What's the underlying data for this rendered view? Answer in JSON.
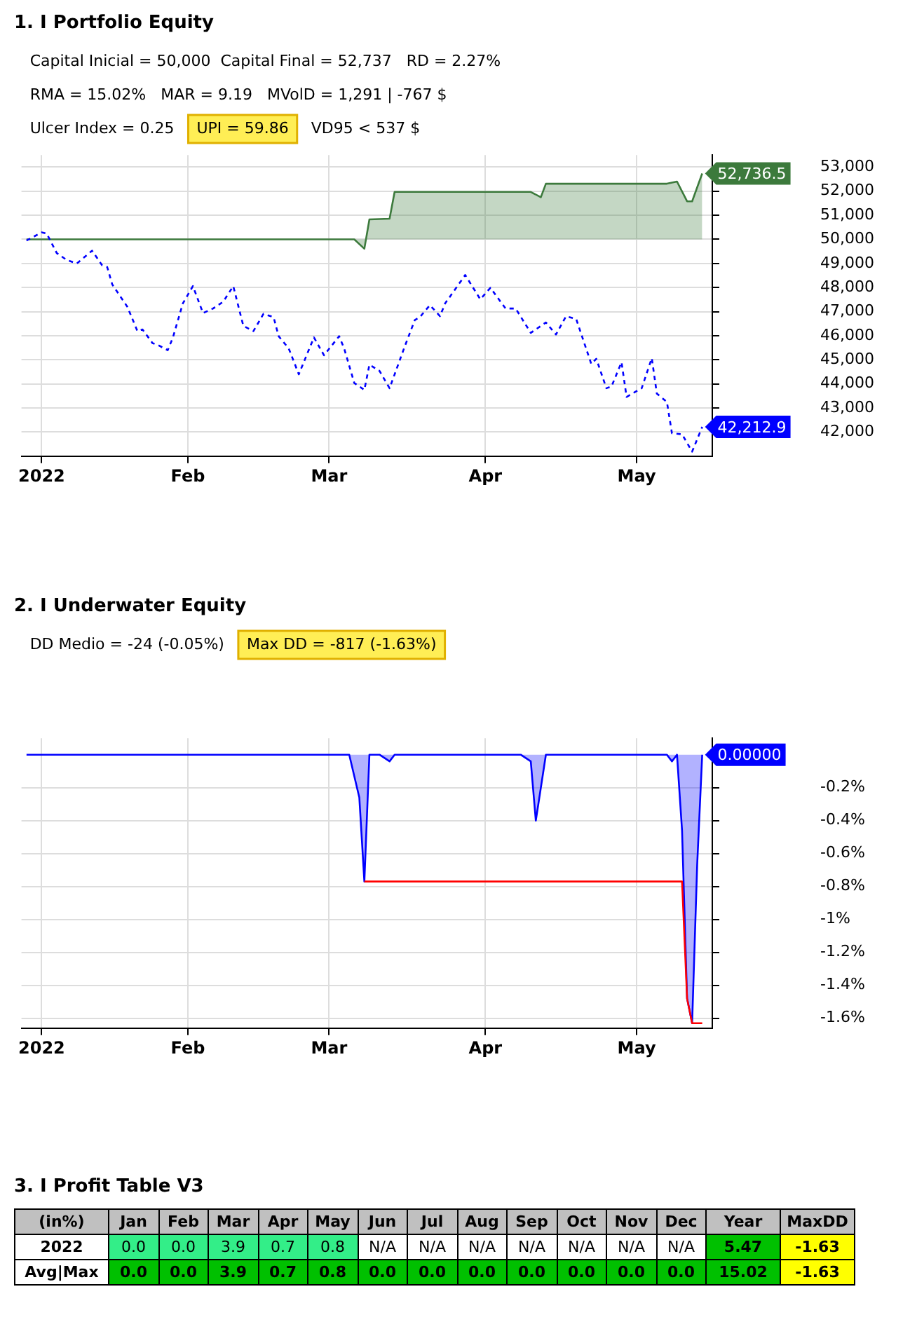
{
  "chart_data": [
    {
      "type": "line",
      "title": "1. I Portfolio Equity",
      "annotations": [
        "Capital Inicial = 50,000  Capital Final = 52,737   RD = 2.27%",
        "RMA = 15.02%   MAR = 9.19   MVolD = 1,291 | -767 $",
        "Ulcer Index = 0.25",
        "UPI = 59.86",
        "VD95 < 537 $"
      ],
      "series": [
        {
          "type": "area",
          "color": "#3c7a3c",
          "line_style": "solid",
          "x": [
            "2021-12-31",
            "2022-03-06",
            "2022-03-08",
            "2022-03-09",
            "2022-03-13",
            "2022-03-14",
            "2022-04-10",
            "2022-04-12",
            "2022-04-13",
            "2022-05-07",
            "2022-05-09",
            "2022-05-11",
            "2022-05-12",
            "2022-05-14"
          ],
          "values": [
            50000,
            50000,
            49610,
            50830,
            50860,
            51970,
            51970,
            51750,
            52310,
            52310,
            52400,
            51580,
            51580,
            52736.5
          ],
          "value_labels": [
            null,
            null,
            null,
            null,
            null,
            null,
            null,
            null,
            null,
            null,
            null,
            null,
            null,
            "52,736.5"
          ]
        },
        {
          "type": "line",
          "color": "#0000ff",
          "line_style": "dashed",
          "x": [
            "2021-12-31",
            "2022-01-03",
            "2022-01-04",
            "2022-01-06",
            "2022-01-08",
            "2022-01-10",
            "2022-01-13",
            "2022-01-15",
            "2022-01-16",
            "2022-01-17",
            "2022-01-20",
            "2022-01-22",
            "2022-01-23",
            "2022-01-25",
            "2022-01-26",
            "2022-01-28",
            "2022-01-29",
            "2022-01-31",
            "2022-02-02",
            "2022-02-04",
            "2022-02-06",
            "2022-02-08",
            "2022-02-10",
            "2022-02-12",
            "2022-02-14",
            "2022-02-16",
            "2022-02-18",
            "2022-02-19",
            "2022-02-21",
            "2022-02-23",
            "2022-02-26",
            "2022-02-28",
            "2022-03-03",
            "2022-03-04",
            "2022-03-06",
            "2022-03-08",
            "2022-03-09",
            "2022-03-11",
            "2022-03-13",
            "2022-03-16",
            "2022-03-18",
            "2022-03-19",
            "2022-03-21",
            "2022-03-23",
            "2022-03-24",
            "2022-03-25",
            "2022-03-28",
            "2022-03-31",
            "2022-04-02",
            "2022-04-05",
            "2022-04-07",
            "2022-04-10",
            "2022-04-13",
            "2022-04-15",
            "2022-04-17",
            "2022-04-19",
            "2022-04-22",
            "2022-04-23",
            "2022-04-25",
            "2022-04-26",
            "2022-04-28",
            "2022-04-29",
            "2022-05-02",
            "2022-05-04",
            "2022-05-05",
            "2022-05-07",
            "2022-05-08",
            "2022-05-10",
            "2022-05-12",
            "2022-05-14"
          ],
          "values": [
            49950,
            50290,
            50240,
            49430,
            49140,
            49000,
            49530,
            48920,
            48850,
            48130,
            47200,
            46190,
            46260,
            45690,
            45620,
            45400,
            45900,
            47340,
            48060,
            46940,
            47130,
            47410,
            48060,
            46410,
            46190,
            46910,
            46770,
            45980,
            45470,
            44400,
            45930,
            45190,
            45980,
            45470,
            44040,
            43750,
            44800,
            44540,
            43820,
            45550,
            46650,
            46770,
            47270,
            46810,
            47340,
            47630,
            48520,
            47510,
            47990,
            47130,
            47130,
            46120,
            46550,
            46050,
            46810,
            46700,
            44830,
            45040,
            43820,
            43890,
            44900,
            43460,
            43820,
            45070,
            43600,
            43250,
            41950,
            41910,
            41190,
            42212.9
          ],
          "value_labels": [
            null,
            null,
            null,
            null,
            null,
            null,
            null,
            null,
            null,
            null,
            null,
            null,
            null,
            null,
            null,
            null,
            null,
            null,
            null,
            null,
            null,
            null,
            null,
            null,
            null,
            null,
            null,
            null,
            null,
            null,
            null,
            null,
            null,
            null,
            null,
            null,
            null,
            null,
            null,
            null,
            null,
            null,
            null,
            null,
            null,
            null,
            null,
            null,
            null,
            null,
            null,
            null,
            null,
            null,
            null,
            null,
            null,
            null,
            null,
            null,
            null,
            null,
            null,
            null,
            null,
            null,
            null,
            null,
            null,
            "42,212.9"
          ]
        }
      ],
      "xlim": [
        "2021-12-30",
        "2022-05-16"
      ],
      "xticks": [
        {
          "value": "2022-01-03",
          "label": "2022"
        },
        {
          "value": "2022-02-01",
          "label": "Feb"
        },
        {
          "value": "2022-03-01",
          "label": "Mar"
        },
        {
          "value": "2022-04-01",
          "label": "Apr"
        },
        {
          "value": "2022-05-01",
          "label": "May"
        }
      ],
      "ylim": [
        41000,
        53500
      ],
      "yticks": [
        {
          "value": 42000,
          "label": "42,000"
        },
        {
          "value": 43000,
          "label": "43,000"
        },
        {
          "value": 44000,
          "label": "44,000"
        },
        {
          "value": 45000,
          "label": "45,000"
        },
        {
          "value": 46000,
          "label": "46,000"
        },
        {
          "value": 47000,
          "label": "47,000"
        },
        {
          "value": 48000,
          "label": "48,000"
        },
        {
          "value": 49000,
          "label": "49,000"
        },
        {
          "value": 50000,
          "label": "50,000"
        },
        {
          "value": 51000,
          "label": "51,000"
        },
        {
          "value": 52000,
          "label": "52,000"
        },
        {
          "value": 53000,
          "label": "53,000"
        }
      ],
      "grid": true,
      "legend": false,
      "marker": "none"
    },
    {
      "type": "line",
      "title": "2. I Underwater Equity",
      "annotations": [
        "DD Medio = -24 (-0.05%)",
        "Max DD = -817 (-1.63%)"
      ],
      "series": [
        {
          "type": "area",
          "color": "#0000ff",
          "line_style": "solid",
          "x": [
            "2021-12-31",
            "2022-03-05",
            "2022-03-07",
            "2022-03-08",
            "2022-03-09",
            "2022-03-11",
            "2022-03-13",
            "2022-03-14",
            "2022-04-08",
            "2022-04-10",
            "2022-04-11",
            "2022-04-13",
            "2022-05-07",
            "2022-05-08",
            "2022-05-09",
            "2022-05-10",
            "2022-05-11",
            "2022-05-12",
            "2022-05-13",
            "2022-05-14"
          ],
          "values": [
            0,
            0,
            -0.26,
            -0.77,
            0,
            0,
            -0.04,
            0,
            0,
            -0.04,
            -0.4,
            0,
            0,
            -0.04,
            0,
            -0.46,
            -1.48,
            -1.63,
            -0.67,
            0
          ],
          "value_labels": [
            null,
            null,
            null,
            null,
            null,
            null,
            null,
            null,
            null,
            null,
            null,
            null,
            null,
            null,
            null,
            null,
            null,
            null,
            null,
            "0.00000"
          ]
        },
        {
          "type": "line",
          "color": "#ff0000",
          "line_style": "solid",
          "x": [
            "2022-03-08",
            "2022-05-10",
            "2022-05-11",
            "2022-05-12",
            "2022-05-14"
          ],
          "values": [
            -0.77,
            -0.77,
            -1.48,
            -1.63,
            -1.63
          ]
        }
      ],
      "xlim": [
        "2021-12-30",
        "2022-05-16"
      ],
      "xticks": [
        {
          "value": "2022-01-03",
          "label": "2022"
        },
        {
          "value": "2022-02-01",
          "label": "Feb"
        },
        {
          "value": "2022-03-01",
          "label": "Mar"
        },
        {
          "value": "2022-04-01",
          "label": "Apr"
        },
        {
          "value": "2022-05-01",
          "label": "May"
        }
      ],
      "ylim": [
        -1.66,
        0.1
      ],
      "yticks": [
        {
          "value": -1.6,
          "label": "-1.6%"
        },
        {
          "value": -1.4,
          "label": "-1.4%"
        },
        {
          "value": -1.2,
          "label": "-1.2%"
        },
        {
          "value": -1,
          "label": "-1%"
        },
        {
          "value": -0.8,
          "label": "-0.8%"
        },
        {
          "value": -0.6,
          "label": "-0.6%"
        },
        {
          "value": -0.4,
          "label": "-0.4%"
        },
        {
          "value": -0.2,
          "label": "-0.2%"
        }
      ],
      "grid": true,
      "legend": false,
      "marker": "none"
    },
    {
      "type": "heatmap",
      "title": "3. I Profit Table V3",
      "ylabel": "(in%)",
      "categories": [
        "Jan",
        "Feb",
        "Mar",
        "Apr",
        "May",
        "Jun",
        "Jul",
        "Aug",
        "Sep",
        "Oct",
        "Nov",
        "Dec",
        "Year",
        "MaxDD"
      ],
      "y_categories": [
        "2022",
        "Avg|Max"
      ],
      "cells": [
        [
          0,
          0,
          3.9,
          0.7,
          0.8,
          null,
          null,
          null,
          null,
          null,
          null,
          null,
          5.47,
          -1.63
        ],
        [
          0,
          0,
          3.9,
          0.7,
          0.8,
          0,
          0,
          0,
          0,
          0,
          0,
          0,
          15.02,
          -1.63
        ]
      ],
      "cell_labels": [
        [
          "0.0",
          "0.0",
          "3.9",
          "0.7",
          "0.8",
          "N/A",
          "N/A",
          "N/A",
          "N/A",
          "N/A",
          "N/A",
          "N/A",
          "5.47",
          "-1.63"
        ],
        [
          "0.0",
          "0.0",
          "3.9",
          "0.7",
          "0.8",
          "0.0",
          "0.0",
          "0.0",
          "0.0",
          "0.0",
          "0.0",
          "0.0",
          "15.02",
          "-1.63"
        ]
      ]
    }
  ]
}
